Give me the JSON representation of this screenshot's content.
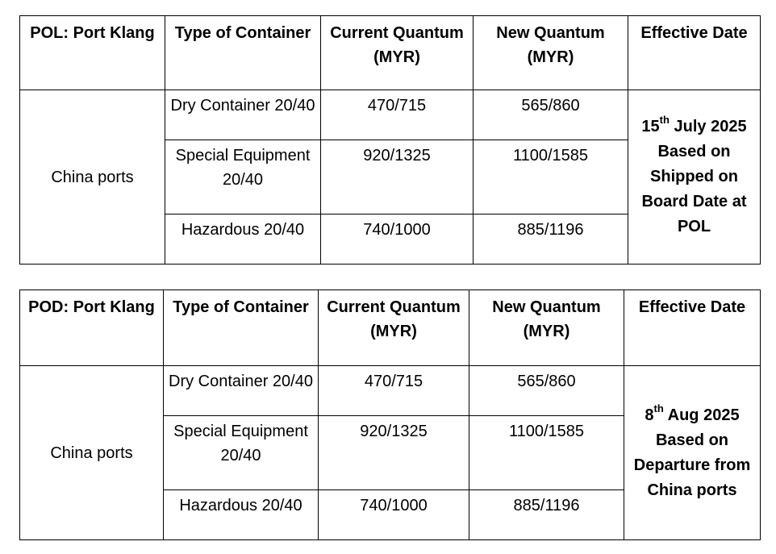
{
  "tables": [
    {
      "headers": {
        "port": "POL: Port Klang",
        "type": "Type of Container",
        "current": "Current Quantum (MYR)",
        "new": "New Quantum (MYR)",
        "effective": "Effective Date"
      },
      "origin": "China ports",
      "rows": [
        {
          "type": "Dry Container 20/40",
          "current": "470/715",
          "new": "565/860"
        },
        {
          "type": "Special Equipment 20/40",
          "current": "920/1325",
          "new": "1100/1585"
        },
        {
          "type": "Hazardous 20/40",
          "current": "740/1000",
          "new": "885/1196"
        }
      ],
      "effective": {
        "day": "15",
        "suffix": "th",
        "rest": "July 2025",
        "note": "Based on Shipped on Board Date at POL"
      }
    },
    {
      "headers": {
        "port": "POD: Port Klang",
        "type": "Type of Container",
        "current": "Current Quantum (MYR)",
        "new": "New Quantum (MYR)",
        "effective": "Effective Date"
      },
      "origin": "China ports",
      "rows": [
        {
          "type": "Dry Container 20/40",
          "current": "470/715",
          "new": "565/860"
        },
        {
          "type": "Special Equipment 20/40",
          "current": "920/1325",
          "new": "1100/1585"
        },
        {
          "type": "Hazardous 20/40",
          "current": "740/1000",
          "new": "885/1196"
        }
      ],
      "effective": {
        "day": "8",
        "suffix": "th",
        "rest": "Aug 2025",
        "note": "Based on Departure from China ports"
      }
    }
  ]
}
